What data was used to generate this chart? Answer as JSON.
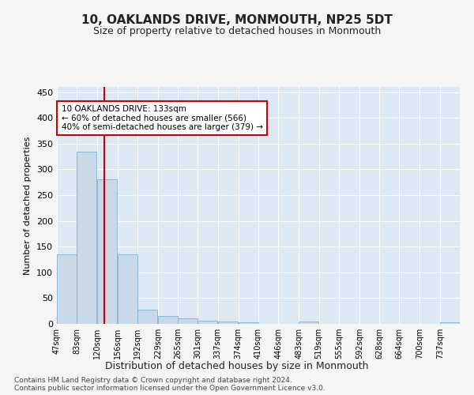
{
  "title": "10, OAKLANDS DRIVE, MONMOUTH, NP25 5DT",
  "subtitle": "Size of property relative to detached houses in Monmouth",
  "xlabel": "Distribution of detached houses by size in Monmouth",
  "ylabel": "Number of detached properties",
  "bar_color": "#c9d9e8",
  "bar_edge_color": "#7bafd4",
  "background_color": "#dce9f5",
  "grid_color": "#ffffff",
  "fig_background": "#f5f5f5",
  "property_size": 133,
  "property_line_color": "#cc0000",
  "annotation_text": "10 OAKLANDS DRIVE: 133sqm\n← 60% of detached houses are smaller (566)\n40% of semi-detached houses are larger (379) →",
  "annotation_box_color": "#ffffff",
  "annotation_box_edge": "#cc0000",
  "footer_line1": "Contains HM Land Registry data © Crown copyright and database right 2024.",
  "footer_line2": "Contains public sector information licensed under the Open Government Licence v3.0.",
  "bins": [
    47,
    83,
    120,
    156,
    192,
    229,
    265,
    301,
    337,
    374,
    410,
    446,
    483,
    519,
    555,
    592,
    628,
    664,
    700,
    737,
    773
  ],
  "counts": [
    135,
    335,
    280,
    135,
    27,
    15,
    11,
    6,
    5,
    3,
    0,
    0,
    4,
    0,
    0,
    0,
    0,
    0,
    0,
    3
  ],
  "ylim": [
    0,
    460
  ],
  "yticks": [
    0,
    50,
    100,
    150,
    200,
    250,
    300,
    350,
    400,
    450
  ]
}
